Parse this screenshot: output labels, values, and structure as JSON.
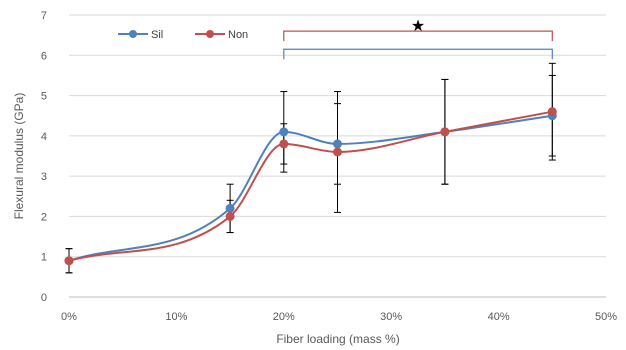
{
  "chart_data": {
    "type": "line",
    "title": "",
    "xlabel": "Fiber loading (mass %)",
    "ylabel": "Flexural modulus (GPa)",
    "xlim": [
      0,
      50
    ],
    "ylim": [
      0,
      7
    ],
    "x_ticks": [
      "0%",
      "10%",
      "20%",
      "30%",
      "40%",
      "50%"
    ],
    "y_ticks": [
      "0",
      "1",
      "2",
      "3",
      "4",
      "5",
      "6",
      "7"
    ],
    "grid": "horizontal",
    "legend_position": "top-left",
    "series": [
      {
        "name": "Sil",
        "color": "#4f81bd",
        "x": [
          0,
          15,
          20,
          25,
          35,
          45
        ],
        "y": [
          0.9,
          2.2,
          4.1,
          3.8,
          4.1,
          4.5
        ],
        "error": [
          0.3,
          0.6,
          1.0,
          1.0,
          1.3,
          1.0
        ]
      },
      {
        "name": "Non",
        "color": "#c0504d",
        "x": [
          0,
          15,
          20,
          25,
          35,
          45
        ],
        "y": [
          0.9,
          2.0,
          3.8,
          3.6,
          4.1,
          4.6
        ],
        "error": [
          0.3,
          0.4,
          0.5,
          1.5,
          1.3,
          1.2
        ]
      }
    ],
    "annotations": [
      {
        "type": "bracket",
        "color": "#c0504d",
        "x_start": 20,
        "x_end": 45,
        "y": 6.6
      },
      {
        "type": "bracket",
        "color": "#4f81bd",
        "x_start": 20,
        "x_end": 45,
        "y": 6.15
      },
      {
        "type": "significance-star",
        "symbol": "★",
        "x": 32.5,
        "y": 6.75
      }
    ]
  }
}
